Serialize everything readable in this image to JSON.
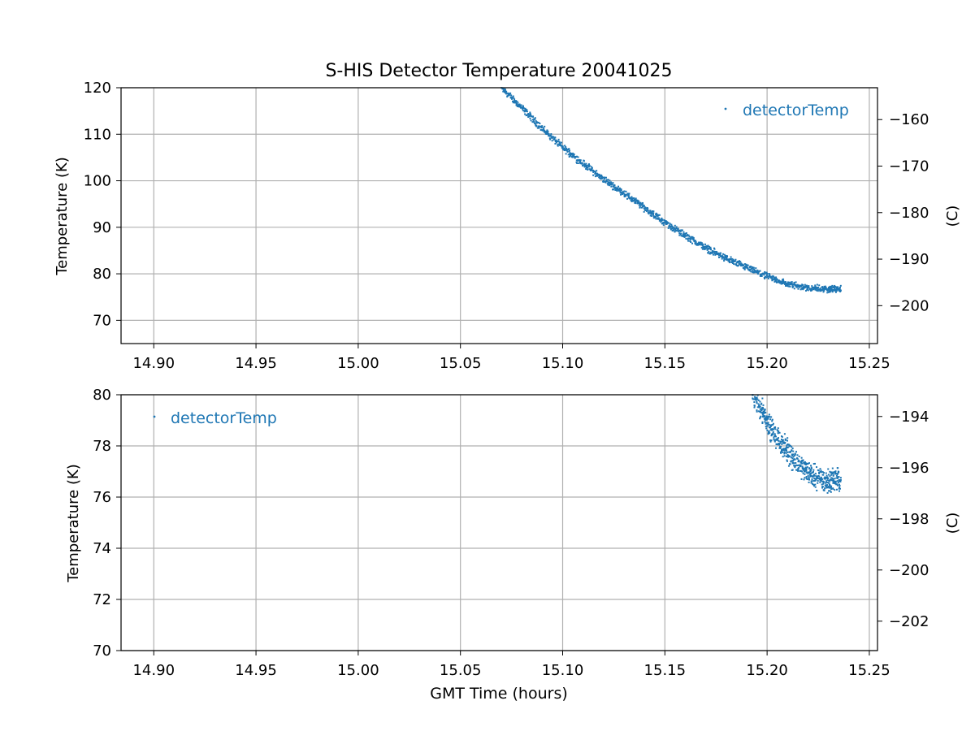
{
  "colors": {
    "series": "#1f77b4",
    "grid": "#b0b0b0",
    "axis": "#000000"
  },
  "chart_data": [
    {
      "type": "scatter",
      "title": "S-HIS Detector Temperature 20041025",
      "xlabel": "",
      "ylabel": "Temperature (K)",
      "ylabel_right": "(C)",
      "xlim": [
        14.884,
        15.254
      ],
      "ylim": [
        65,
        120
      ],
      "x_ticks": [
        "14.90",
        "14.95",
        "15.00",
        "15.05",
        "15.10",
        "15.15",
        "15.20",
        "15.25"
      ],
      "y_ticks": [
        "70",
        "80",
        "90",
        "100",
        "110",
        "120"
      ],
      "y_right_ticks": [
        "−160",
        "−170",
        "−180",
        "−190",
        "−200"
      ],
      "grid": true,
      "legend_position": "top-right",
      "series": [
        {
          "name": "detectorTemp",
          "x": [
            15.07,
            15.08,
            15.09,
            15.1,
            15.11,
            15.12,
            15.13,
            15.14,
            15.15,
            15.16,
            15.17,
            15.18,
            15.19,
            15.2,
            15.21,
            15.22,
            15.23,
            15.236
          ],
          "y": [
            120,
            115.7,
            111.2,
            107.2,
            103.7,
            100.3,
            97.3,
            94.2,
            91.0,
            88.2,
            85.6,
            83.3,
            81.3,
            79.4,
            77.8,
            77.0,
            76.7,
            76.7
          ]
        }
      ]
    },
    {
      "type": "scatter",
      "title": "",
      "xlabel": "GMT Time (hours)",
      "ylabel": "Temperature (K)",
      "ylabel_right": "(C)",
      "xlim": [
        14.884,
        15.254
      ],
      "ylim": [
        70,
        80
      ],
      "x_ticks": [
        "14.90",
        "14.95",
        "15.00",
        "15.05",
        "15.10",
        "15.15",
        "15.20",
        "15.25"
      ],
      "y_ticks": [
        "70",
        "72",
        "74",
        "76",
        "78",
        "80"
      ],
      "y_right_ticks": [
        "−194",
        "−196",
        "−198",
        "−200",
        "−202"
      ],
      "grid": true,
      "legend_position": "top-left",
      "series": [
        {
          "name": "detectorTemp",
          "x": [
            15.193,
            15.197,
            15.2,
            15.203,
            15.207,
            15.21,
            15.213,
            15.217,
            15.22,
            15.223,
            15.227,
            15.23,
            15.233,
            15.236
          ],
          "y": [
            79.9,
            79.5,
            79.0,
            78.5,
            78.1,
            77.8,
            77.5,
            77.2,
            77.0,
            76.8,
            76.7,
            76.6,
            76.7,
            76.7
          ]
        }
      ]
    }
  ]
}
